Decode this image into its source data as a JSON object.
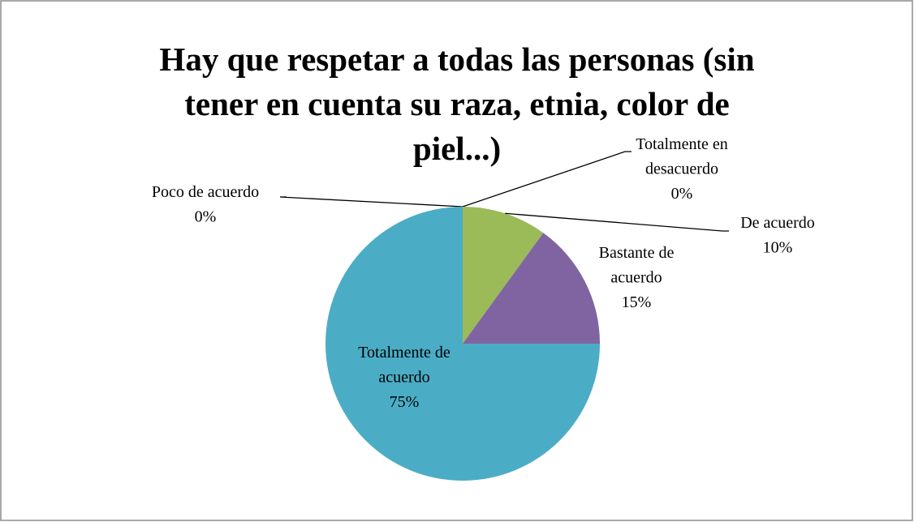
{
  "chart_data": {
    "type": "pie",
    "title": "Hay que respetar a todas las personas (sin tener en cuenta su raza, etnia, color de piel...)",
    "categories": [
      "Totalmente en desacuerdo",
      "Poco de acuerdo",
      "De acuerdo",
      "Bastante de acuerdo",
      "Totalmente de acuerdo"
    ],
    "values": [
      0,
      0,
      10,
      15,
      75
    ],
    "value_labels": [
      "0%",
      "0%",
      "10%",
      "15%",
      "75%"
    ],
    "colors": [
      "#4f81bd",
      "#c0504d",
      "#9bbb59",
      "#8064a2",
      "#4bacc6"
    ]
  }
}
